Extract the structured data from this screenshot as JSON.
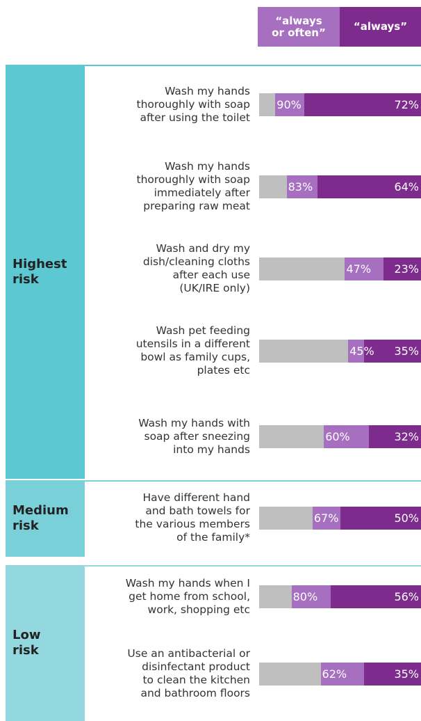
{
  "chart_data": {
    "type": "bar",
    "xlim": [
      0,
      100
    ],
    "series": [
      {
        "name": "“always\nor often”",
        "color": "#a66fbf"
      },
      {
        "name": "“always”",
        "color": "#7d2b8d"
      }
    ],
    "groups": [
      {
        "label": "Highest\nrisk",
        "rows": [
          {
            "label": "Wash my hands\nthoroughly with soap\nafter using the toilet",
            "values": [
              90,
              72
            ],
            "value_labels": [
              "90%",
              "72%"
            ]
          },
          {
            "label": "Wash my hands\nthoroughly with soap\nimmediately after\npreparing raw meat",
            "values": [
              83,
              64
            ],
            "value_labels": [
              "83%",
              "64%"
            ]
          },
          {
            "label": "Wash and dry my\ndish/cleaning cloths\nafter each use\n(UK/IRE only)",
            "values": [
              47,
              23
            ],
            "value_labels": [
              "47%",
              "23%"
            ]
          },
          {
            "label": "Wash pet feeding\nutensils in a different\nbowl as family cups,\nplates etc",
            "values": [
              45,
              35
            ],
            "value_labels": [
              "45%",
              "35%"
            ]
          },
          {
            "label": "Wash my hands with\nsoap after sneezing\ninto my hands",
            "values": [
              60,
              32
            ],
            "value_labels": [
              "60%",
              "32%"
            ]
          }
        ]
      },
      {
        "label": "Medium\nrisk",
        "rows": [
          {
            "label": "Have different hand\nand bath towels for\nthe various members\nof the family*",
            "values": [
              67,
              50
            ],
            "value_labels": [
              "67%",
              "50%"
            ]
          },
          {
            "label": "Wash my hands when I\nget home from school,\nwork, shopping etc",
            "values": [
              80,
              56
            ],
            "value_labels": [
              "80%",
              "56%"
            ]
          }
        ]
      },
      {
        "label": "Low\nrisk",
        "rows": [
          {
            "label": "Use an antibacterial or\ndisinfectant product\nto clean the kitchen\nand bathroom floors",
            "values": [
              62,
              35
            ],
            "value_labels": [
              "62%",
              "35%"
            ]
          }
        ]
      }
    ]
  }
}
